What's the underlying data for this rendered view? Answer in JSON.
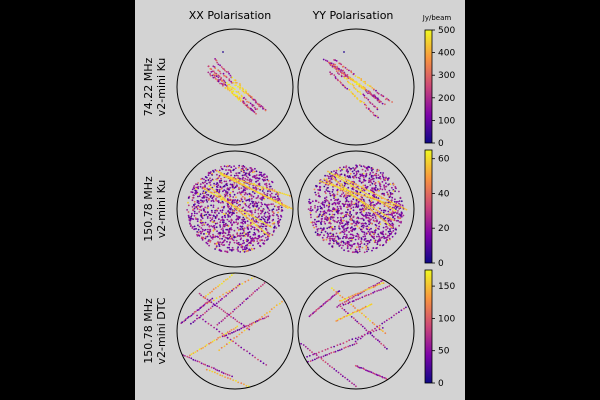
{
  "chart_data": {
    "type": "scatter",
    "column_titles": [
      "XX Polarisation",
      "YY Polarisation"
    ],
    "colorbar_unit": "Jy/beam",
    "colormap": "plasma",
    "rows": [
      {
        "label_line1": "74.22 MHz",
        "label_line2": "v2-mini Ku",
        "colorbar_range": [
          0,
          500
        ],
        "colorbar_ticks": [
          "0",
          "100",
          "200",
          "300",
          "400",
          "500"
        ],
        "pattern": "streaks"
      },
      {
        "label_line1": "150.78 MHz",
        "label_line2": "v2-mini Ku",
        "colorbar_range": [
          0,
          65
        ],
        "colorbar_ticks": [
          "0",
          "20",
          "40",
          "60"
        ],
        "pattern": "dense-disc"
      },
      {
        "label_line1": "150.78 MHz",
        "label_line2": "v2-mini DTC",
        "colorbar_range": [
          0,
          175
        ],
        "colorbar_ticks": [
          "0",
          "50",
          "100",
          "150"
        ],
        "pattern": "sparse-tracks"
      }
    ]
  },
  "colors": {
    "frame": "#000000",
    "panel_background": "#d3d3d3",
    "circle": "#000000"
  }
}
